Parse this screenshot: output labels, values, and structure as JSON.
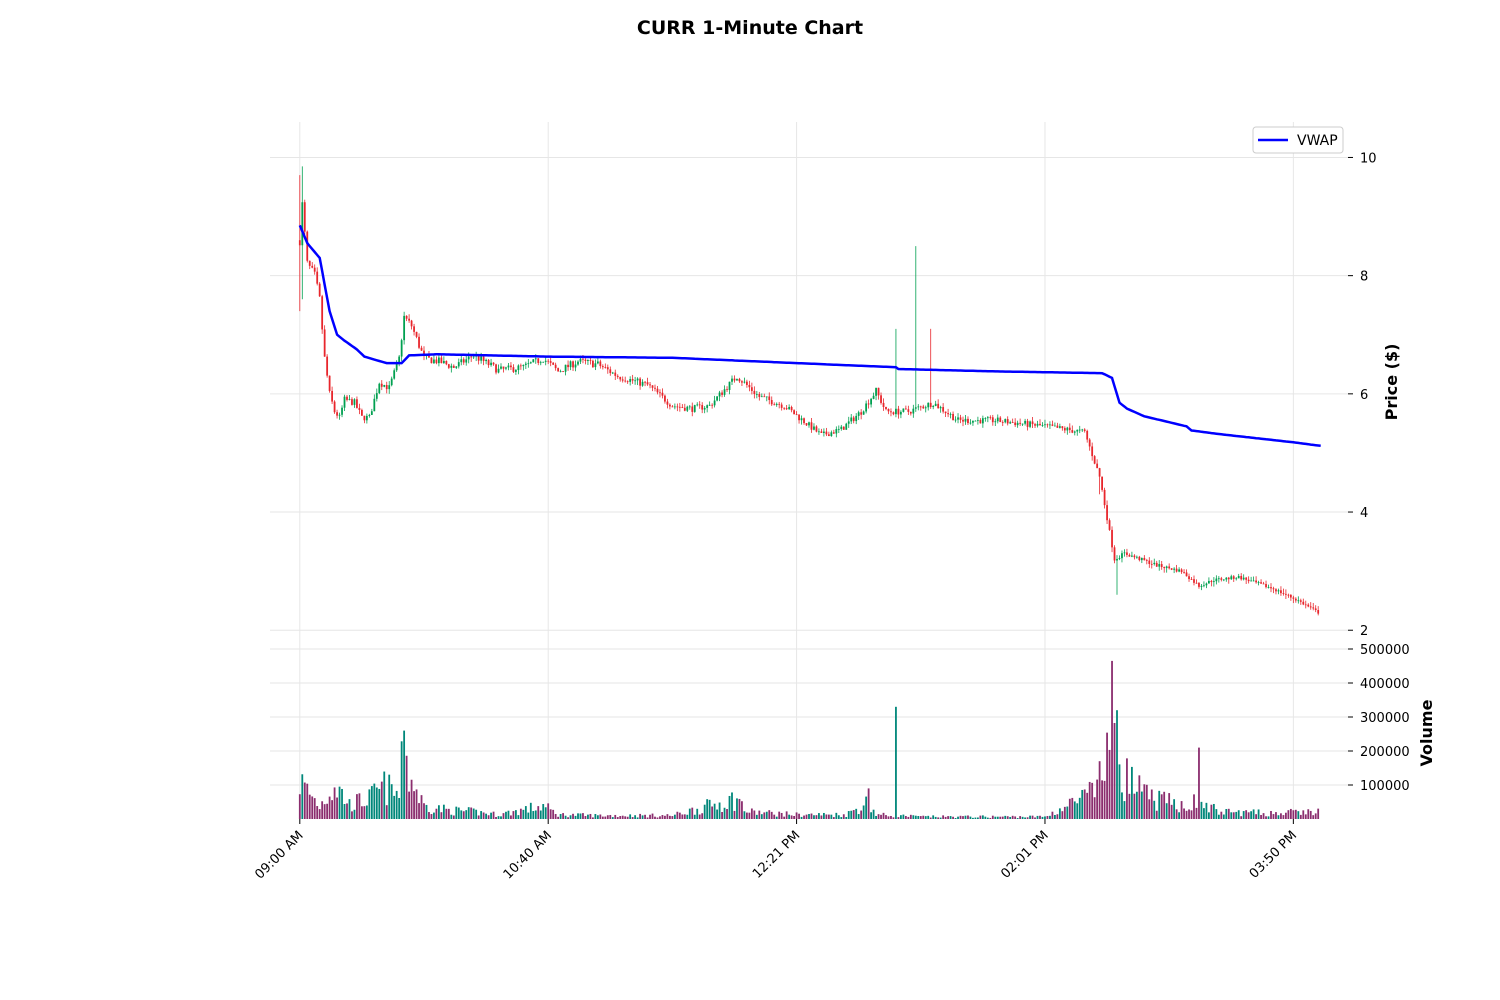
{
  "chart_data": {
    "type": "candlestick",
    "title": "CURR 1-Minute Chart",
    "price_panel": {
      "ylabel": "Price ($)",
      "ylim": [
        1.75,
        10.6
      ],
      "yticks": [
        2,
        4,
        6,
        8,
        10
      ],
      "ytick_labels": [
        "2",
        "4",
        "6",
        "8",
        "10"
      ],
      "grid": true,
      "legend": {
        "position": "top-right",
        "entries": [
          "VWAP"
        ]
      }
    },
    "volume_panel": {
      "ylabel": "Volume",
      "ylim": [
        0,
        500000
      ],
      "yticks": [
        100000,
        200000,
        300000,
        400000,
        500000
      ],
      "ytick_labels": [
        "100000",
        "200000",
        "300000",
        "400000",
        "500000"
      ],
      "grid": true
    },
    "x_axis": {
      "xlim": [
        -12,
        422
      ],
      "ticks": [
        0,
        100,
        200,
        300,
        400
      ],
      "tick_labels": [
        "09:00 AM",
        "10:40 AM",
        "12:21 PM",
        "02:01 PM",
        "03:50 PM"
      ],
      "n_bars": 411
    },
    "price_anchors": [
      [
        0,
        8.6
      ],
      [
        1,
        9.2
      ],
      [
        3,
        8.2
      ],
      [
        6,
        8.0
      ],
      [
        8,
        7.6
      ],
      [
        10,
        6.6
      ],
      [
        12,
        6.0
      ],
      [
        14,
        5.7
      ],
      [
        16,
        5.6
      ],
      [
        18,
        5.9
      ],
      [
        22,
        5.85
      ],
      [
        25,
        5.6
      ],
      [
        28,
        5.6
      ],
      [
        32,
        6.2
      ],
      [
        36,
        6.1
      ],
      [
        40,
        6.6
      ],
      [
        42,
        7.3
      ],
      [
        45,
        7.15
      ],
      [
        50,
        6.6
      ],
      [
        56,
        6.55
      ],
      [
        62,
        6.45
      ],
      [
        70,
        6.65
      ],
      [
        80,
        6.4
      ],
      [
        90,
        6.45
      ],
      [
        98,
        6.6
      ],
      [
        104,
        6.38
      ],
      [
        112,
        6.55
      ],
      [
        120,
        6.5
      ],
      [
        128,
        6.3
      ],
      [
        140,
        6.15
      ],
      [
        150,
        5.8
      ],
      [
        158,
        5.75
      ],
      [
        165,
        5.8
      ],
      [
        176,
        6.3
      ],
      [
        185,
        5.95
      ],
      [
        195,
        5.8
      ],
      [
        210,
        5.3
      ],
      [
        218,
        5.4
      ],
      [
        226,
        5.7
      ],
      [
        232,
        6.05
      ],
      [
        236,
        5.7
      ],
      [
        245,
        5.7
      ],
      [
        255,
        5.85
      ],
      [
        265,
        5.55
      ],
      [
        280,
        5.55
      ],
      [
        300,
        5.45
      ],
      [
        316,
        5.35
      ],
      [
        322,
        4.6
      ],
      [
        328,
        3.2
      ],
      [
        332,
        3.3
      ],
      [
        345,
        3.1
      ],
      [
        355,
        3.0
      ],
      [
        362,
        2.75
      ],
      [
        368,
        2.85
      ],
      [
        378,
        2.9
      ],
      [
        392,
        2.7
      ],
      [
        402,
        2.5
      ],
      [
        410,
        2.3
      ]
    ],
    "spikes": [
      {
        "x": 240,
        "high": 7.1
      },
      {
        "x": 248,
        "high": 8.5
      },
      {
        "x": 254,
        "high": 7.1
      },
      {
        "x": 322,
        "low": 4.3
      },
      {
        "x": 329,
        "low": 2.6
      }
    ],
    "volume_anchors": [
      [
        0,
        130000
      ],
      [
        8,
        45000
      ],
      [
        14,
        120000
      ],
      [
        20,
        50000
      ],
      [
        28,
        70000
      ],
      [
        34,
        110000
      ],
      [
        40,
        80000
      ],
      [
        42,
        260000
      ],
      [
        44,
        150000
      ],
      [
        50,
        45000
      ],
      [
        60,
        30000
      ],
      [
        70,
        25000
      ],
      [
        80,
        15000
      ],
      [
        98,
        45000
      ],
      [
        104,
        15000
      ],
      [
        120,
        12000
      ],
      [
        150,
        12000
      ],
      [
        176,
        70000
      ],
      [
        180,
        25000
      ],
      [
        200,
        15000
      ],
      [
        220,
        15000
      ],
      [
        229,
        60000
      ],
      [
        232,
        15000
      ],
      [
        250,
        8000
      ],
      [
        300,
        8000
      ],
      [
        322,
        100000
      ],
      [
        328,
        380000
      ],
      [
        332,
        150000
      ],
      [
        340,
        80000
      ],
      [
        348,
        60000
      ],
      [
        356,
        50000
      ],
      [
        362,
        60000
      ],
      [
        370,
        25000
      ],
      [
        390,
        20000
      ],
      [
        410,
        25000
      ]
    ],
    "volume_spikes": [
      [
        240,
        330000
      ],
      [
        229,
        90000
      ],
      [
        322,
        170000
      ],
      [
        327,
        465000
      ],
      [
        329,
        320000
      ],
      [
        362,
        210000
      ],
      [
        42,
        260000
      ]
    ],
    "vwap": [
      [
        0,
        8.85
      ],
      [
        3,
        8.55
      ],
      [
        8,
        8.3
      ],
      [
        12,
        7.4
      ],
      [
        15,
        7.0
      ],
      [
        18,
        6.9
      ],
      [
        23,
        6.75
      ],
      [
        26,
        6.63
      ],
      [
        30,
        6.58
      ],
      [
        35,
        6.52
      ],
      [
        41,
        6.52
      ],
      [
        44,
        6.65
      ],
      [
        55,
        6.67
      ],
      [
        100,
        6.63
      ],
      [
        150,
        6.61
      ],
      [
        200,
        6.52
      ],
      [
        240,
        6.45
      ],
      [
        241,
        6.42
      ],
      [
        280,
        6.38
      ],
      [
        323,
        6.35
      ],
      [
        327,
        6.27
      ],
      [
        330,
        5.85
      ],
      [
        333,
        5.75
      ],
      [
        340,
        5.62
      ],
      [
        357,
        5.45
      ],
      [
        359,
        5.38
      ],
      [
        370,
        5.32
      ],
      [
        400,
        5.18
      ],
      [
        411,
        5.12
      ]
    ]
  },
  "colors": {
    "up": "#00a050",
    "down": "#e8262c",
    "vol_up": "#00877a",
    "vol_down": "#8b2d6e",
    "vwap": "#0000ff",
    "grid": "#e6e6e6"
  }
}
